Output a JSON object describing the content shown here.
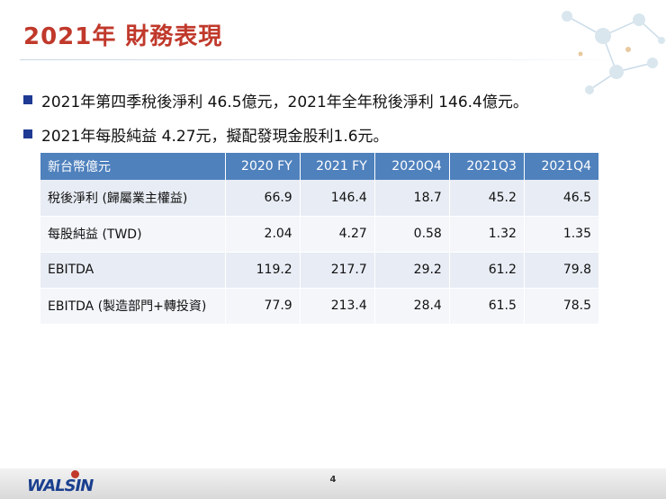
{
  "title": "2021年 財務表現",
  "bullets": [
    "2021年第四季稅後淨利 46.5億元，2021年全年稅後淨利 146.4億元。",
    "2021年每股純益 4.27元，擬配發現金股利1.6元。"
  ],
  "table": {
    "headers": [
      "新台幣億元",
      "2020 FY",
      "2021 FY",
      "2020Q4",
      "2021Q3",
      "2021Q4"
    ],
    "rows": [
      [
        "稅後淨利 (歸屬業主權益)",
        "66.9",
        "146.4",
        "18.7",
        "45.2",
        "46.5"
      ],
      [
        "每股純益 (TWD)",
        "2.04",
        "4.27",
        "0.58",
        "1.32",
        "1.35"
      ],
      [
        "EBITDA",
        "119.2",
        "217.7",
        "29.2",
        "61.2",
        "79.8"
      ],
      [
        "EBITDA (製造部門+轉投資)",
        "77.9",
        "213.4",
        "28.4",
        "61.5",
        "78.5"
      ]
    ]
  },
  "footer": {
    "page_number": "4",
    "logo_text": "WALSIN"
  },
  "colors": {
    "title": "#c0392b",
    "bullet": "#1f3a93",
    "table_header": "#4f81bd"
  },
  "icons": {
    "decoration": "molecule-network-icon"
  }
}
